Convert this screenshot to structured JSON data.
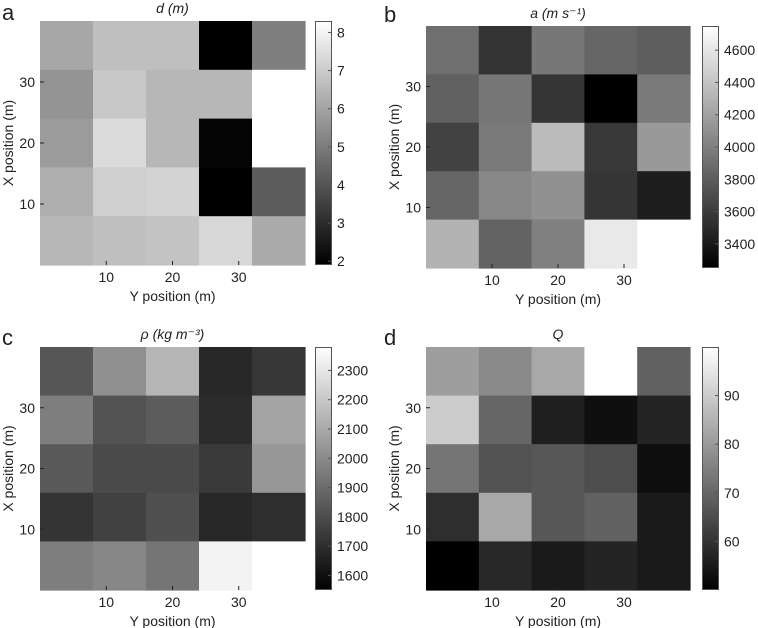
{
  "colors": {
    "axis": "#222222",
    "background": "#ffffff",
    "colormap": "gray"
  },
  "chart_data": [
    {
      "panel_letter": "a",
      "type": "heatmap",
      "title": "d",
      "title_unit": "(m)",
      "xlabel": "Y position (m)",
      "ylabel": "X position (m)",
      "xticks": [
        "10",
        "20",
        "30"
      ],
      "yticks": [
        "10",
        "20",
        "30"
      ],
      "colorbar_ticks": [
        "2",
        "3",
        "4",
        "5",
        "6",
        "7",
        "8"
      ],
      "clim": [
        1.9,
        8.3
      ],
      "grid": false,
      "values": [
        [
          6.1,
          6.7,
          6.7,
          1.9,
          5.1
        ],
        [
          5.6,
          6.9,
          6.5,
          6.5,
          8.3
        ],
        [
          5.8,
          7.4,
          6.5,
          2.0,
          8.3
        ],
        [
          6.3,
          7.1,
          7.2,
          1.9,
          4.2
        ],
        [
          6.5,
          6.7,
          6.8,
          7.3,
          6.2
        ]
      ]
    },
    {
      "panel_letter": "b",
      "type": "heatmap",
      "title": "a",
      "title_unit": "(m s⁻¹)",
      "xlabel": "Y position (m)",
      "ylabel": "X position (m)",
      "xticks": [
        "10",
        "20",
        "30"
      ],
      "yticks": [
        "10",
        "20",
        "30"
      ],
      "colorbar_ticks": [
        "3400",
        "3600",
        "3800",
        "4000",
        "4200",
        "4400",
        "4600"
      ],
      "clim": [
        3250,
        4750
      ],
      "grid": false,
      "values": [
        [
          3900,
          3550,
          3950,
          3850,
          3800
        ],
        [
          3820,
          3950,
          3560,
          3250,
          3970
        ],
        [
          3640,
          3960,
          4350,
          3580,
          4150
        ],
        [
          3850,
          4050,
          4100,
          3560,
          3420
        ],
        [
          4300,
          3830,
          4000,
          4620,
          4750
        ]
      ]
    },
    {
      "panel_letter": "c",
      "type": "heatmap",
      "title": "ρ",
      "title_unit": "(kg m⁻³)",
      "xlabel": "Y position (m)",
      "ylabel": "X position (m)",
      "xticks": [
        "10",
        "20",
        "30"
      ],
      "yticks": [
        "10",
        "20",
        "30"
      ],
      "colorbar_ticks": [
        "1600",
        "1700",
        "1800",
        "1900",
        "2000",
        "2100",
        "2200",
        "2300"
      ],
      "clim": [
        1550,
        2380
      ],
      "grid": false,
      "values": [
        [
          1830,
          2020,
          2140,
          1680,
          1730
        ],
        [
          1960,
          1820,
          1850,
          1690,
          2080
        ],
        [
          1840,
          1790,
          1790,
          1740,
          2040
        ],
        [
          1720,
          1760,
          1810,
          1680,
          1700
        ],
        [
          1960,
          1990,
          1930,
          2340,
          2380
        ]
      ]
    },
    {
      "panel_letter": "d",
      "type": "heatmap",
      "title": "Q",
      "title_unit": "",
      "xlabel": "Y position (m)",
      "ylabel": "X position (m)",
      "xticks": [
        "10",
        "20",
        "30"
      ],
      "yticks": [
        "10",
        "20",
        "30"
      ],
      "colorbar_ticks": [
        "60",
        "70",
        "80",
        "90"
      ],
      "clim": [
        50,
        100
      ],
      "grid": false,
      "values": [
        [
          81,
          77,
          83,
          100,
          69
        ],
        [
          90,
          70,
          56,
          53,
          57
        ],
        [
          73,
          66,
          67,
          65,
          53
        ],
        [
          59,
          83,
          67,
          69,
          55
        ],
        [
          50,
          58,
          55,
          57,
          55
        ]
      ]
    }
  ]
}
